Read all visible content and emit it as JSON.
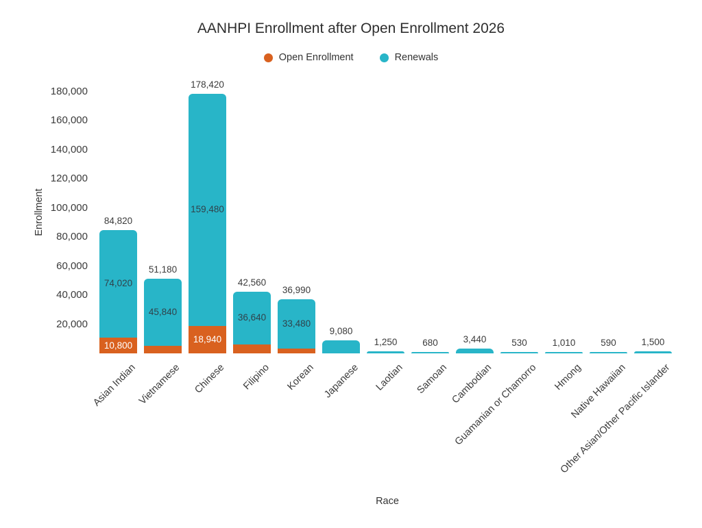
{
  "title": "AANHPI Enrollment after Open Enrollment 2026",
  "legend": [
    {
      "label": "Open Enrollment",
      "color": "#D9611F"
    },
    {
      "label": "Renewals",
      "color": "#28B5C8"
    }
  ],
  "axes": {
    "y_title": "Enrollment",
    "x_title": "Race"
  },
  "chart_data": {
    "type": "bar",
    "stacked": true,
    "title": "AANHPI Enrollment after Open Enrollment 2026",
    "xlabel": "Race",
    "ylabel": "Enrollment",
    "ylim": [
      0,
      180000
    ],
    "grid": false,
    "legend_position": "top",
    "y_tick_labels": [
      "20,000",
      "40,000",
      "60,000",
      "80,000",
      "100,000",
      "120,000",
      "140,000",
      "160,000",
      "180,000"
    ],
    "categories": [
      "Asian Indian",
      "Vietnamese",
      "Chinese",
      "Filipino",
      "Korean",
      "Japanese",
      "Laotian",
      "Samoan",
      "Cambodian",
      "Guamanian or Chamorro",
      "Hmong",
      "Native Hawaiian",
      "Other Asian/Other Pacific Islander"
    ],
    "series": [
      {
        "name": "Open Enrollment",
        "color": "#D9611F",
        "values": [
          10800,
          5340,
          18940,
          5920,
          3510,
          0,
          0,
          0,
          0,
          0,
          0,
          0,
          0
        ]
      },
      {
        "name": "Renewals",
        "color": "#28B5C8",
        "values": [
          74020,
          45840,
          159480,
          36640,
          33480,
          9080,
          1250,
          680,
          3440,
          530,
          1010,
          590,
          1500
        ]
      }
    ],
    "totals": [
      84820,
      51180,
      178420,
      42560,
      36990,
      9080,
      1250,
      680,
      3440,
      530,
      1010,
      590,
      1500
    ],
    "bar_labels": [
      {
        "total": "84,820",
        "renewals": "74,020",
        "open": "10,800"
      },
      {
        "total": "51,180",
        "renewals": "45,840",
        "open": null
      },
      {
        "total": "178,420",
        "renewals": "159,480",
        "open": "18,940"
      },
      {
        "total": "42,560",
        "renewals": "36,640",
        "open": null
      },
      {
        "total": "36,990",
        "renewals": "33,480",
        "open": null
      },
      {
        "total": "9,080",
        "renewals": null,
        "open": null
      },
      {
        "total": "1,250",
        "renewals": null,
        "open": null
      },
      {
        "total": "680",
        "renewals": null,
        "open": null
      },
      {
        "total": "3,440",
        "renewals": null,
        "open": null
      },
      {
        "total": "530",
        "renewals": null,
        "open": null
      },
      {
        "total": "1,010",
        "renewals": null,
        "open": null
      },
      {
        "total": "590",
        "renewals": null,
        "open": null
      },
      {
        "total": "1,500",
        "renewals": null,
        "open": null
      }
    ]
  }
}
